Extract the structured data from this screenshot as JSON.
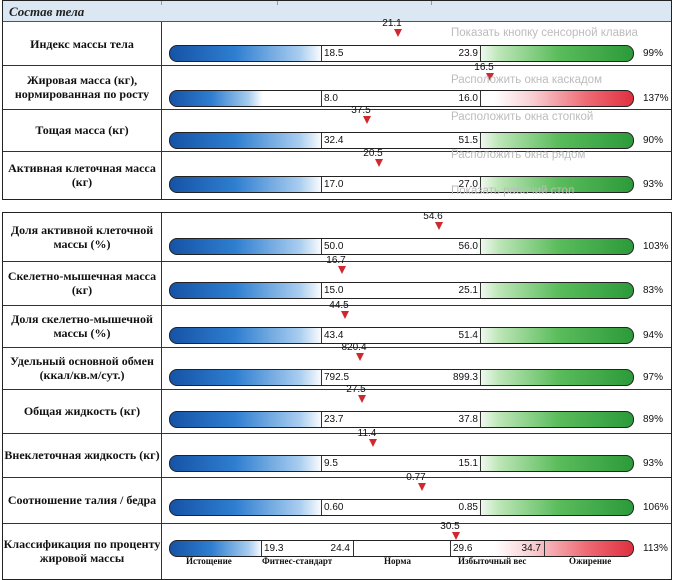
{
  "section_title": "Состав тела",
  "panel1_rows": [
    {
      "label": "Индекс массы тела",
      "low": "18.5",
      "high": "23.9",
      "value": "21.1",
      "percent": "99%",
      "bar": "fitness"
    },
    {
      "label": "Жировая масса (кг), нормированная по росту",
      "low": "8.0",
      "high": "16.0",
      "value": "16.5",
      "percent": "137%",
      "bar": "fat"
    },
    {
      "label": "Тощая масса (кг)",
      "low": "32.4",
      "high": "51.5",
      "value": "37.5",
      "percent": "90%",
      "bar": "fitness"
    },
    {
      "label": "Активная клеточная масса (кг)",
      "low": "17.0",
      "high": "27.0",
      "value": "20.5",
      "percent": "93%",
      "bar": "fitness"
    }
  ],
  "panel2_rows": [
    {
      "label": "Доля активной клеточной массы (%)",
      "low": "50.0",
      "high": "56.0",
      "value": "54.6",
      "percent": "103%",
      "bar": "fitness"
    },
    {
      "label": "Скелетно-мышечная масса (кг)",
      "low": "15.0",
      "high": "25.1",
      "value": "16.7",
      "percent": "83%",
      "bar": "fitness"
    },
    {
      "label": "Доля скелетно-мышечной массы (%)",
      "low": "43.4",
      "high": "51.4",
      "value": "44.5",
      "percent": "94%",
      "bar": "fitness"
    },
    {
      "label": "Удельный основной обмен (ккал/кв.м/сут.)",
      "low": "792.5",
      "high": "899.3",
      "value": "820.4",
      "percent": "97%",
      "bar": "fitness"
    },
    {
      "label": "Общая жидкость (кг)",
      "low": "23.7",
      "high": "37.8",
      "value": "27.5",
      "percent": "89%",
      "bar": "fitness"
    },
    {
      "label": "Внеклеточная жидкость (кг)",
      "low": "9.5",
      "high": "15.1",
      "value": "11.4",
      "percent": "93%",
      "bar": "fitness"
    },
    {
      "label": "Соотношение талия / бедра",
      "low": "0.60",
      "high": "0.85",
      "value": "0.77",
      "percent": "106%",
      "bar": "fitness"
    }
  ],
  "classification": {
    "label": "Классификация по проценту жировой массы",
    "thresholds": [
      "19.3",
      "24.4",
      "29.6",
      "34.7"
    ],
    "value": "30.5",
    "percent": "113%",
    "categories": [
      "Истощение",
      "Фитнес-стандарт",
      "Норма",
      "Избыточный вес",
      "Ожирение"
    ]
  },
  "context_menu": [
    "Показать кнопку сенсорной клавиа",
    "Расположить окна каскадом",
    "Расположить окна стопкой",
    "Расположить окна рядом",
    "Показать рабочий стол"
  ],
  "colors": {
    "marker": "#d0282f",
    "header_bg": "#dbe7f2",
    "blue": "#1653a6",
    "green": "#2c9a3b",
    "red": "#e0303f"
  }
}
